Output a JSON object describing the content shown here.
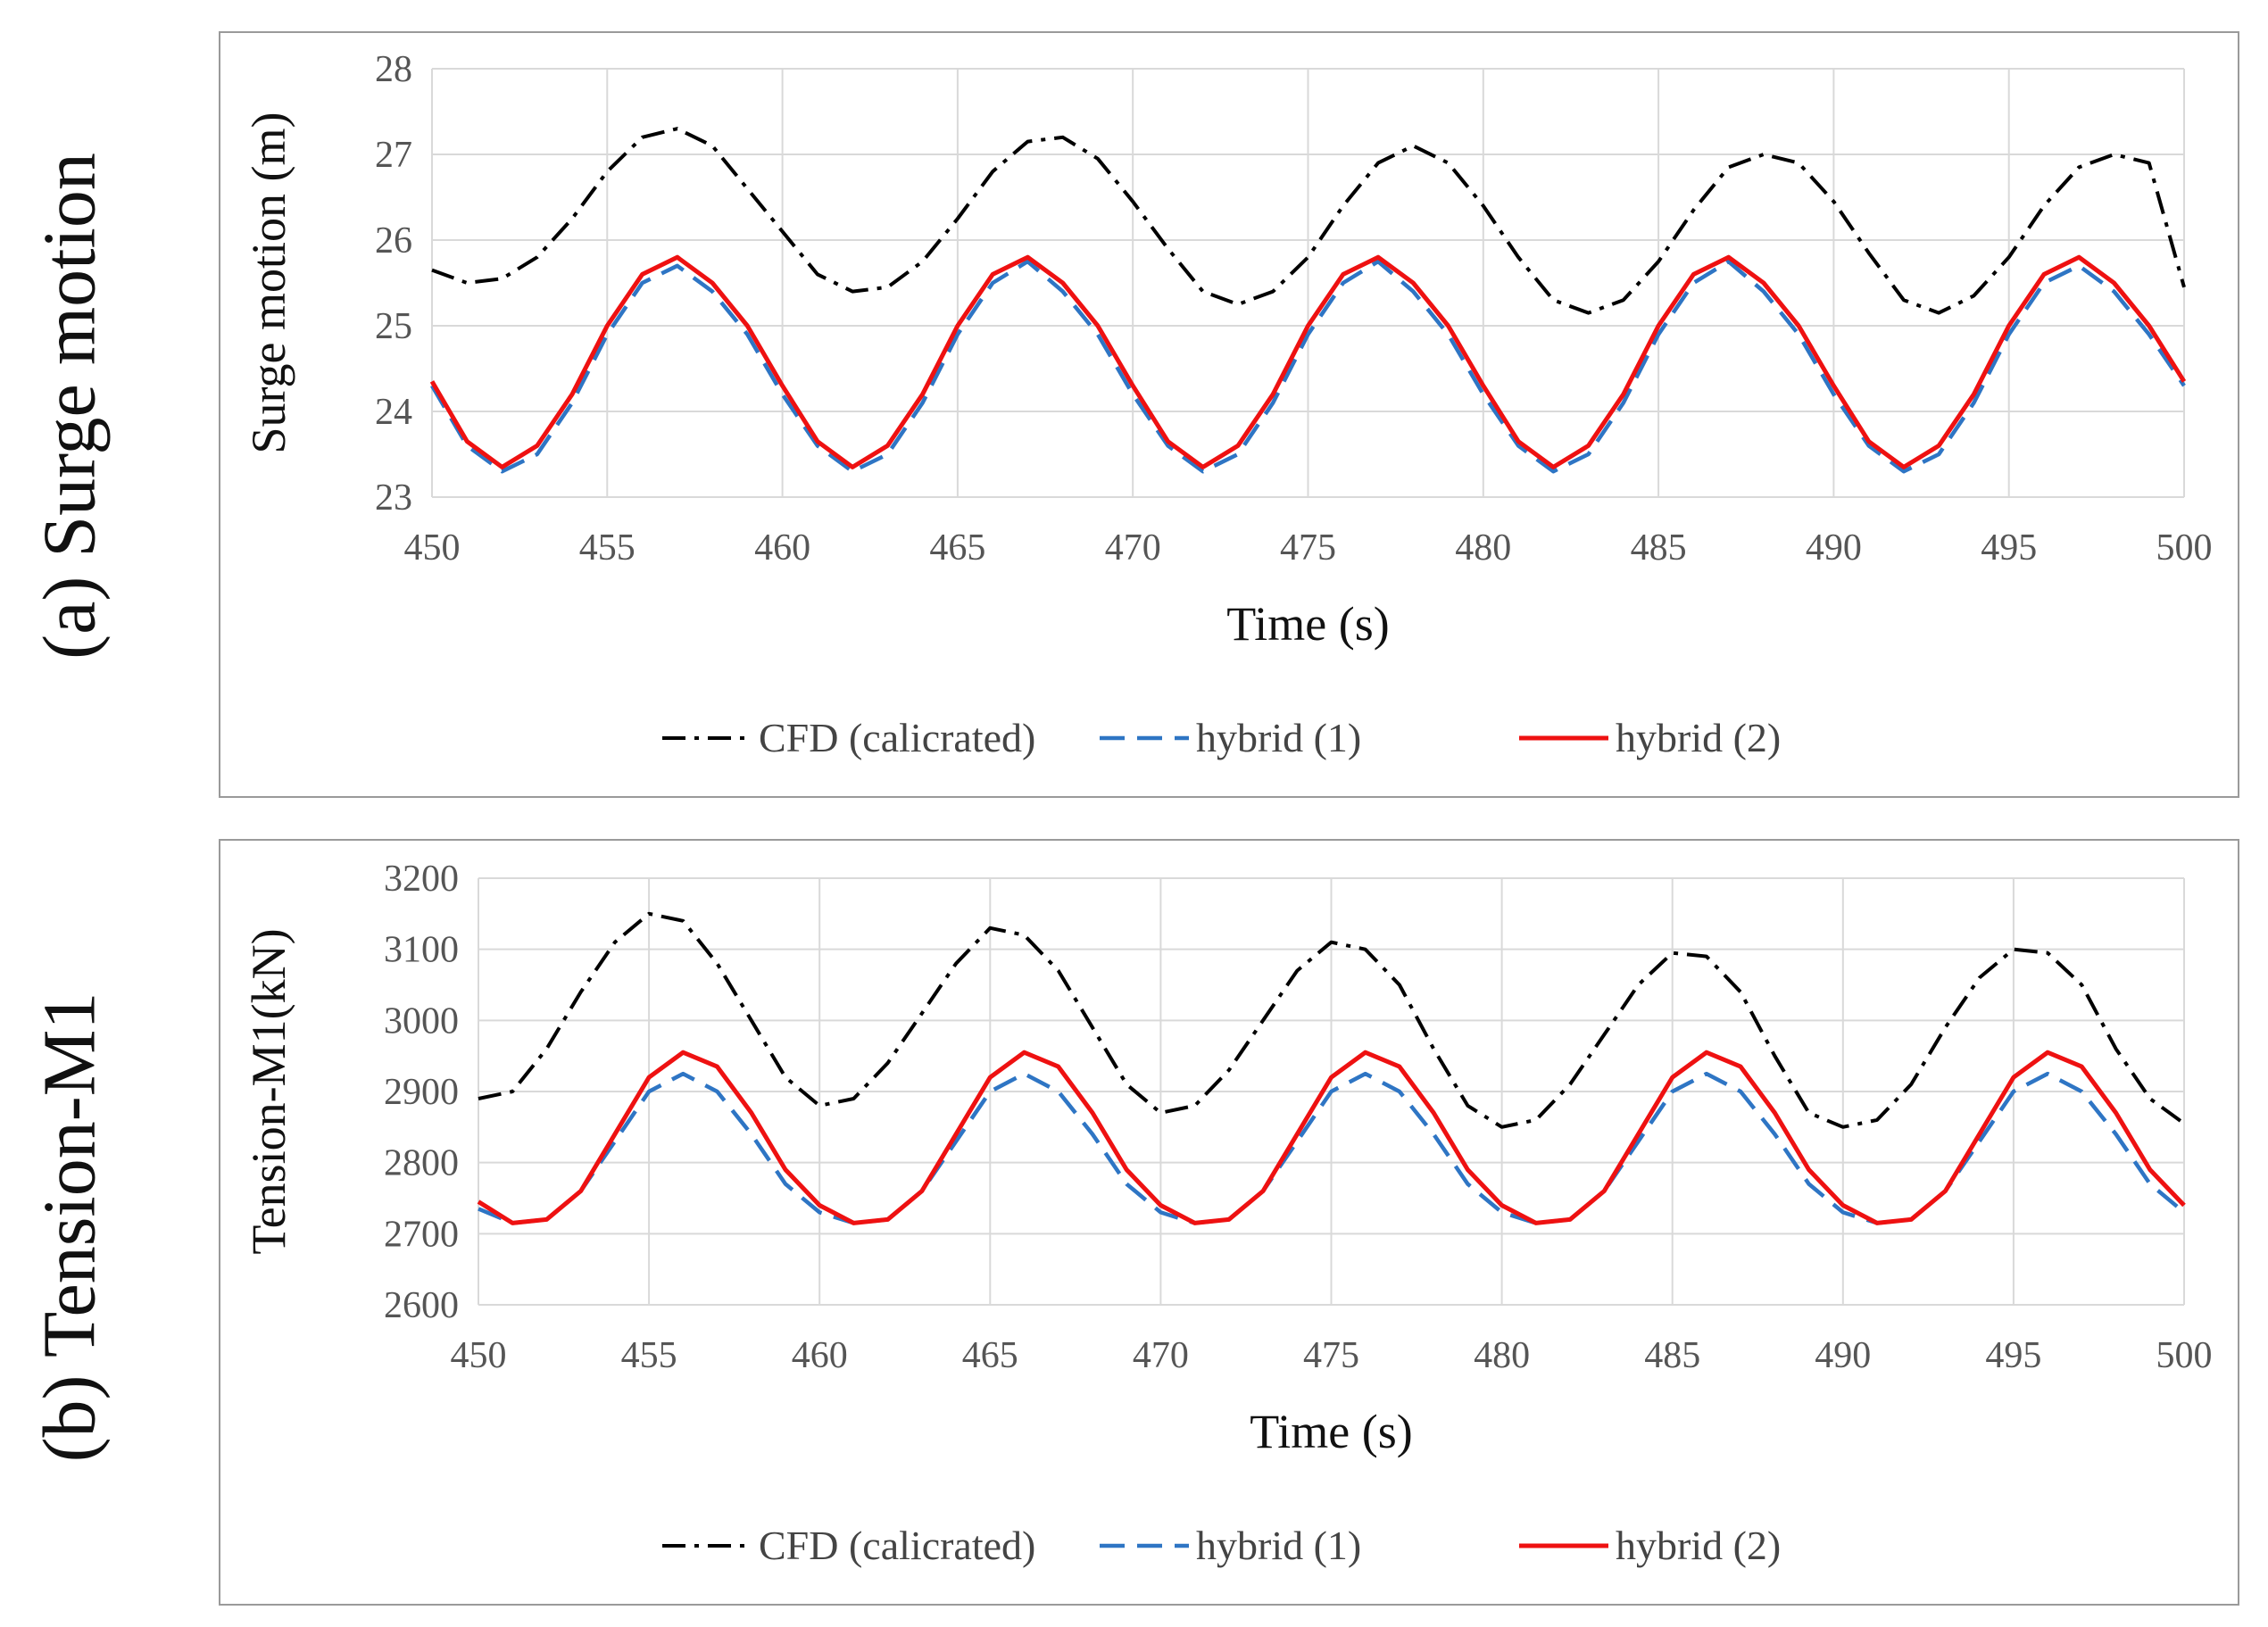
{
  "colors": {
    "cfd": "#000000",
    "hybrid1": "#2e75c4",
    "hybrid2": "#ee1111",
    "grid": "#d9d9d9"
  },
  "panels": [
    {
      "side_label": "(a) Surge motion"
    },
    {
      "side_label": "(b) Tension-M1"
    }
  ],
  "chart_data": [
    {
      "type": "line",
      "xlabel": "Time (s)",
      "ylabel": "Surge motion (m)",
      "xlim": [
        450,
        500
      ],
      "ylim": [
        23,
        28
      ],
      "x_ticks": [
        450,
        455,
        460,
        465,
        470,
        475,
        480,
        485,
        490,
        495,
        500
      ],
      "y_ticks": [
        23,
        24,
        25,
        26,
        27,
        28
      ],
      "grid": true,
      "legend_position": "bottom",
      "x": [
        450,
        451,
        452,
        453,
        454,
        455,
        456,
        457,
        458,
        459,
        460,
        461,
        462,
        463,
        464,
        465,
        466,
        467,
        468,
        469,
        470,
        471,
        472,
        473,
        474,
        475,
        476,
        477,
        478,
        479,
        480,
        481,
        482,
        483,
        484,
        485,
        486,
        487,
        488,
        489,
        490,
        491,
        492,
        493,
        494,
        495,
        496,
        497,
        498,
        499,
        500
      ],
      "series": [
        {
          "name": "CFD (calicrated)",
          "style": "dashdot",
          "values": [
            25.65,
            25.5,
            25.55,
            25.8,
            26.25,
            26.8,
            27.2,
            27.3,
            27.1,
            26.6,
            26.1,
            25.6,
            25.4,
            25.45,
            25.75,
            26.25,
            26.8,
            27.15,
            27.2,
            26.95,
            26.45,
            25.9,
            25.4,
            25.25,
            25.4,
            25.8,
            26.4,
            26.9,
            27.1,
            26.9,
            26.4,
            25.8,
            25.3,
            25.15,
            25.3,
            25.75,
            26.35,
            26.85,
            27.0,
            26.9,
            26.45,
            25.85,
            25.3,
            25.15,
            25.35,
            25.8,
            26.4,
            26.85,
            27.0,
            26.9,
            25.45
          ]
        },
        {
          "name": "hybrid (1)",
          "style": "dashed",
          "values": [
            24.3,
            23.6,
            23.3,
            23.5,
            24.1,
            24.9,
            25.5,
            25.7,
            25.4,
            24.9,
            24.2,
            23.6,
            23.3,
            23.5,
            24.1,
            24.9,
            25.5,
            25.75,
            25.4,
            24.9,
            24.2,
            23.6,
            23.3,
            23.5,
            24.1,
            24.9,
            25.5,
            25.75,
            25.4,
            24.9,
            24.2,
            23.6,
            23.3,
            23.5,
            24.1,
            24.9,
            25.5,
            25.75,
            25.4,
            24.9,
            24.2,
            23.6,
            23.3,
            23.5,
            24.1,
            24.9,
            25.5,
            25.7,
            25.4,
            24.9,
            24.3
          ]
        },
        {
          "name": "hybrid (2)",
          "style": "solid",
          "values": [
            24.35,
            23.65,
            23.35,
            23.6,
            24.2,
            25.0,
            25.6,
            25.8,
            25.5,
            25.0,
            24.3,
            23.65,
            23.35,
            23.6,
            24.2,
            25.0,
            25.6,
            25.8,
            25.5,
            25.0,
            24.3,
            23.65,
            23.35,
            23.6,
            24.2,
            25.0,
            25.6,
            25.8,
            25.5,
            25.0,
            24.3,
            23.65,
            23.35,
            23.6,
            24.2,
            25.0,
            25.6,
            25.8,
            25.5,
            25.0,
            24.3,
            23.65,
            23.35,
            23.6,
            24.2,
            25.0,
            25.6,
            25.8,
            25.5,
            25.0,
            24.35
          ]
        }
      ]
    },
    {
      "type": "line",
      "xlabel": "Time (s)",
      "ylabel": "Tension-M1(kN)",
      "xlim": [
        450,
        500
      ],
      "ylim": [
        2600,
        3200
      ],
      "x_ticks": [
        450,
        455,
        460,
        465,
        470,
        475,
        480,
        485,
        490,
        495,
        500
      ],
      "y_ticks": [
        2600,
        2700,
        2800,
        2900,
        3000,
        3100,
        3200
      ],
      "grid": true,
      "legend_position": "bottom",
      "x": [
        450,
        451,
        452,
        453,
        454,
        455,
        456,
        457,
        458,
        459,
        460,
        461,
        462,
        463,
        464,
        465,
        466,
        467,
        468,
        469,
        470,
        471,
        472,
        473,
        474,
        475,
        476,
        477,
        478,
        479,
        480,
        481,
        482,
        483,
        484,
        485,
        486,
        487,
        488,
        489,
        490,
        491,
        492,
        493,
        494,
        495,
        496,
        497,
        498,
        499,
        500
      ],
      "series": [
        {
          "name": "CFD (calicrated)",
          "style": "dashdot",
          "values": [
            2890,
            2900,
            2960,
            3040,
            3110,
            3150,
            3140,
            3080,
            3000,
            2920,
            2880,
            2890,
            2940,
            3010,
            3080,
            3130,
            3120,
            3070,
            2990,
            2910,
            2870,
            2880,
            2930,
            3000,
            3070,
            3110,
            3100,
            3050,
            2960,
            2880,
            2850,
            2860,
            2910,
            2980,
            3050,
            3095,
            3090,
            3040,
            2950,
            2870,
            2850,
            2860,
            2910,
            2990,
            3060,
            3100,
            3095,
            3050,
            2960,
            2890,
            2855
          ]
        },
        {
          "name": "hybrid (1)",
          "style": "dashed",
          "values": [
            2735,
            2715,
            2720,
            2760,
            2830,
            2900,
            2925,
            2900,
            2840,
            2770,
            2730,
            2715,
            2720,
            2760,
            2830,
            2900,
            2925,
            2900,
            2840,
            2770,
            2730,
            2715,
            2720,
            2760,
            2830,
            2900,
            2925,
            2900,
            2840,
            2770,
            2730,
            2715,
            2720,
            2760,
            2830,
            2900,
            2925,
            2900,
            2840,
            2770,
            2730,
            2715,
            2720,
            2760,
            2830,
            2900,
            2925,
            2900,
            2840,
            2770,
            2730
          ]
        },
        {
          "name": "hybrid (2)",
          "style": "solid",
          "values": [
            2745,
            2715,
            2720,
            2760,
            2840,
            2920,
            2955,
            2935,
            2870,
            2790,
            2740,
            2715,
            2720,
            2760,
            2840,
            2920,
            2955,
            2935,
            2870,
            2790,
            2740,
            2715,
            2720,
            2760,
            2840,
            2920,
            2955,
            2935,
            2870,
            2790,
            2740,
            2715,
            2720,
            2760,
            2840,
            2920,
            2955,
            2935,
            2870,
            2790,
            2740,
            2715,
            2720,
            2760,
            2840,
            2920,
            2955,
            2935,
            2870,
            2790,
            2740
          ]
        }
      ]
    }
  ]
}
